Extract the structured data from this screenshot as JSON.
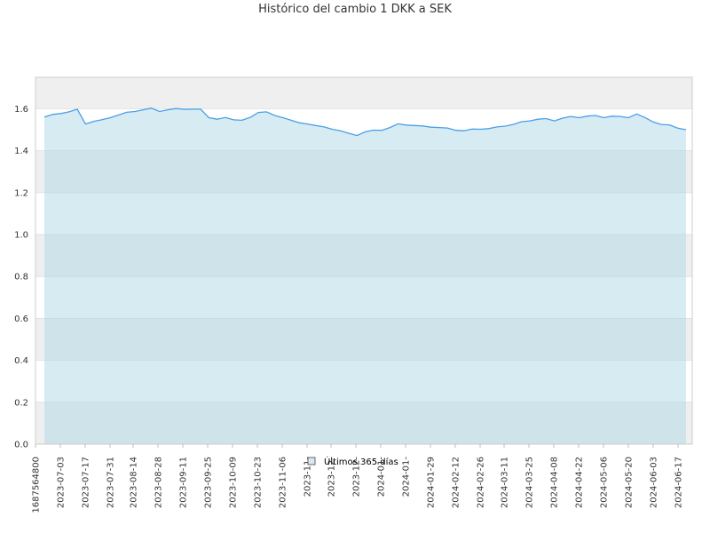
{
  "chart_data": {
    "type": "area",
    "title": "Histórico del cambio 1 DKK a SEK",
    "xlabel": "",
    "ylabel": "",
    "ylim": [
      0,
      1.6
    ],
    "yticks": [
      "0.0",
      "0.2",
      "0.4",
      "0.6",
      "0.8",
      "1.0",
      "1.2",
      "1.4",
      "1.6"
    ],
    "xticks": [
      "1687564800",
      "2023-07-03",
      "2023-07-17",
      "2023-07-31",
      "2023-08-14",
      "2023-08-28",
      "2023-09-11",
      "2023-09-25",
      "2023-10-09",
      "2023-10-23",
      "2023-11-06",
      "2023-11-",
      "2023-12-",
      "2023-12-",
      "2024-01-",
      "2024-01-",
      "2024-01-29",
      "2024-02-12",
      "2024-02-26",
      "2024-03-11",
      "2024-03-25",
      "2024-04-08",
      "2024-04-22",
      "2024-05-06",
      "2024-05-20",
      "2024-06-03",
      "2024-06-17"
    ],
    "grid": true,
    "legend": "bottom-center",
    "series": [
      {
        "name": "Últimos 365 días",
        "x": [
          "2023-06-24",
          "2023-06-28",
          "2023-07-03",
          "2023-07-08",
          "2023-07-13",
          "2023-07-17",
          "2023-07-22",
          "2023-07-27",
          "2023-07-31",
          "2023-08-05",
          "2023-08-10",
          "2023-08-14",
          "2023-08-19",
          "2023-08-24",
          "2023-08-28",
          "2023-09-02",
          "2023-09-07",
          "2023-09-11",
          "2023-09-16",
          "2023-09-21",
          "2023-09-25",
          "2023-09-30",
          "2023-10-05",
          "2023-10-09",
          "2023-10-14",
          "2023-10-19",
          "2023-10-23",
          "2023-10-28",
          "2023-11-02",
          "2023-11-06",
          "2023-11-11",
          "2023-11-16",
          "2023-11-20",
          "2023-11-25",
          "2023-11-30",
          "2023-12-04",
          "2023-12-09",
          "2023-12-14",
          "2023-12-18",
          "2023-12-23",
          "2023-12-28",
          "2024-01-01",
          "2024-01-06",
          "2024-01-11",
          "2024-01-15",
          "2024-01-20",
          "2024-01-25",
          "2024-01-29",
          "2024-02-03",
          "2024-02-08",
          "2024-02-12",
          "2024-02-17",
          "2024-02-22",
          "2024-02-26",
          "2024-03-02",
          "2024-03-07",
          "2024-03-11",
          "2024-03-16",
          "2024-03-21",
          "2024-03-25",
          "2024-03-30",
          "2024-04-04",
          "2024-04-08",
          "2024-04-13",
          "2024-04-18",
          "2024-04-22",
          "2024-04-27",
          "2024-05-02",
          "2024-05-06",
          "2024-05-11",
          "2024-05-16",
          "2024-05-20",
          "2024-05-25",
          "2024-05-30",
          "2024-06-03",
          "2024-06-08",
          "2024-06-13",
          "2024-06-17",
          "2024-06-22"
        ],
        "values": [
          1.56,
          1.57,
          1.58,
          1.585,
          1.595,
          1.53,
          1.54,
          1.545,
          1.56,
          1.57,
          1.58,
          1.59,
          1.595,
          1.6,
          1.59,
          1.595,
          1.598,
          1.6,
          1.598,
          1.595,
          1.56,
          1.55,
          1.555,
          1.55,
          1.545,
          1.555,
          1.585,
          1.585,
          1.565,
          1.56,
          1.545,
          1.53,
          1.53,
          1.52,
          1.51,
          1.505,
          1.495,
          1.48,
          1.475,
          1.49,
          1.495,
          1.5,
          1.51,
          1.525,
          1.525,
          1.52,
          1.515,
          1.515,
          1.51,
          1.505,
          1.5,
          1.495,
          1.5,
          1.505,
          1.505,
          1.51,
          1.52,
          1.525,
          1.535,
          1.545,
          1.55,
          1.55,
          1.545,
          1.555,
          1.56,
          1.56,
          1.565,
          1.565,
          1.56,
          1.565,
          1.56,
          1.56,
          1.575,
          1.555,
          1.54,
          1.525,
          1.52,
          1.51,
          1.5
        ]
      }
    ]
  }
}
